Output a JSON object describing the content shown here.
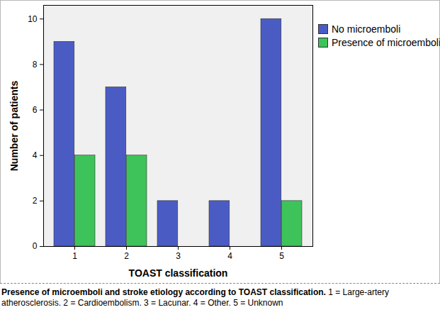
{
  "chart_data": {
    "type": "bar",
    "categories": [
      "1",
      "2",
      "3",
      "4",
      "5"
    ],
    "series": [
      {
        "name": "No microemboli",
        "color": "#4a5cc4",
        "values": [
          9,
          7,
          2,
          2,
          10
        ]
      },
      {
        "name": "Presence of microemboli",
        "color": "#3dc35a",
        "values": [
          4,
          4,
          0,
          0,
          2
        ]
      }
    ],
    "xlabel": "TOAST classification",
    "ylabel": "Number of patients",
    "ylim": [
      0,
      10.6
    ],
    "yticks": [
      0,
      2,
      4,
      6,
      8,
      10
    ],
    "grid": false,
    "legend": "top right",
    "caption_title": "Presence of microemboli and stroke etiology according to TOAST classification.",
    "caption": "1 = Large-artery atherosclerosis. 2 = Cardioembolism. 3 = Lacunar. 4 = Other. 5 = Unknown"
  }
}
